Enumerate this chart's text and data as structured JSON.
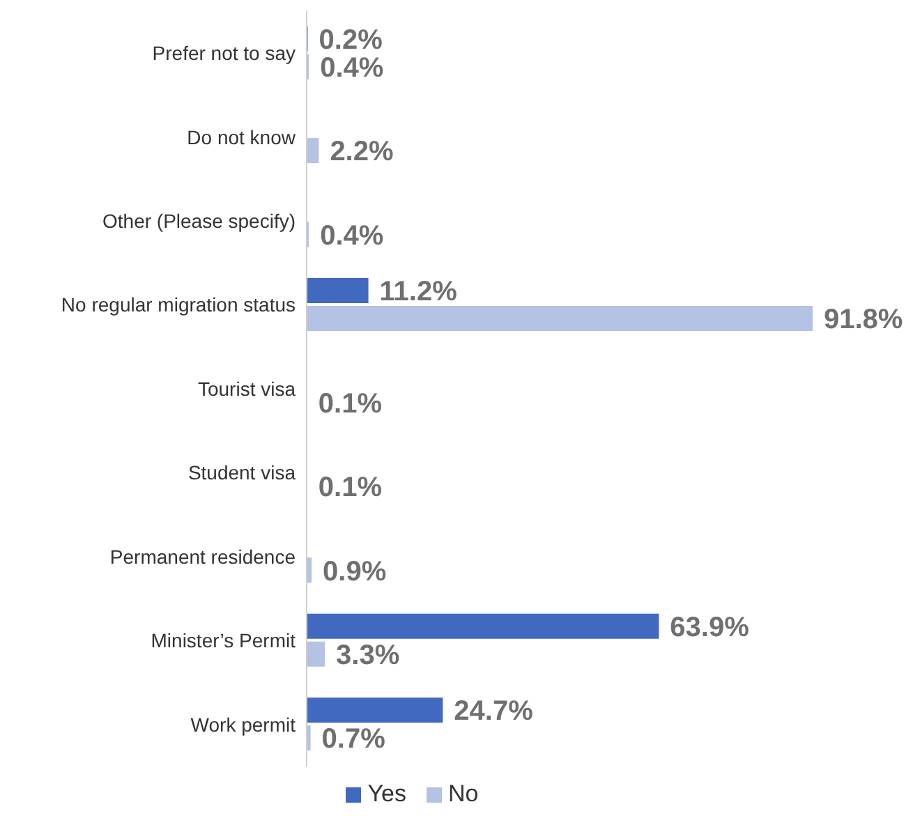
{
  "chart_data": {
    "type": "bar",
    "orientation": "horizontal",
    "categories": [
      "Prefer not to say",
      "Do not know",
      "Other (Please specify)",
      "No regular migration status",
      "Tourist visa",
      "Student visa",
      "Permanent residence",
      "Minister’s Permit",
      "Work permit"
    ],
    "series": [
      {
        "name": "Yes",
        "color": "#4169c0",
        "values": [
          0.2,
          null,
          null,
          11.2,
          null,
          null,
          null,
          63.9,
          24.7
        ],
        "value_labels": [
          "0.2%",
          null,
          null,
          "11.2%",
          null,
          null,
          null,
          "63.9%",
          "24.7%"
        ]
      },
      {
        "name": "No",
        "color": "#b4c2e3",
        "values": [
          0.4,
          2.2,
          0.4,
          91.8,
          0.1,
          0.1,
          0.9,
          3.3,
          0.7
        ],
        "value_labels": [
          "0.4%",
          "2.2%",
          "0.4%",
          "91.8%",
          "0.1%",
          "0.1%",
          "0.9%",
          "3.3%",
          "0.7%"
        ]
      }
    ],
    "legend": "bottom"
  }
}
